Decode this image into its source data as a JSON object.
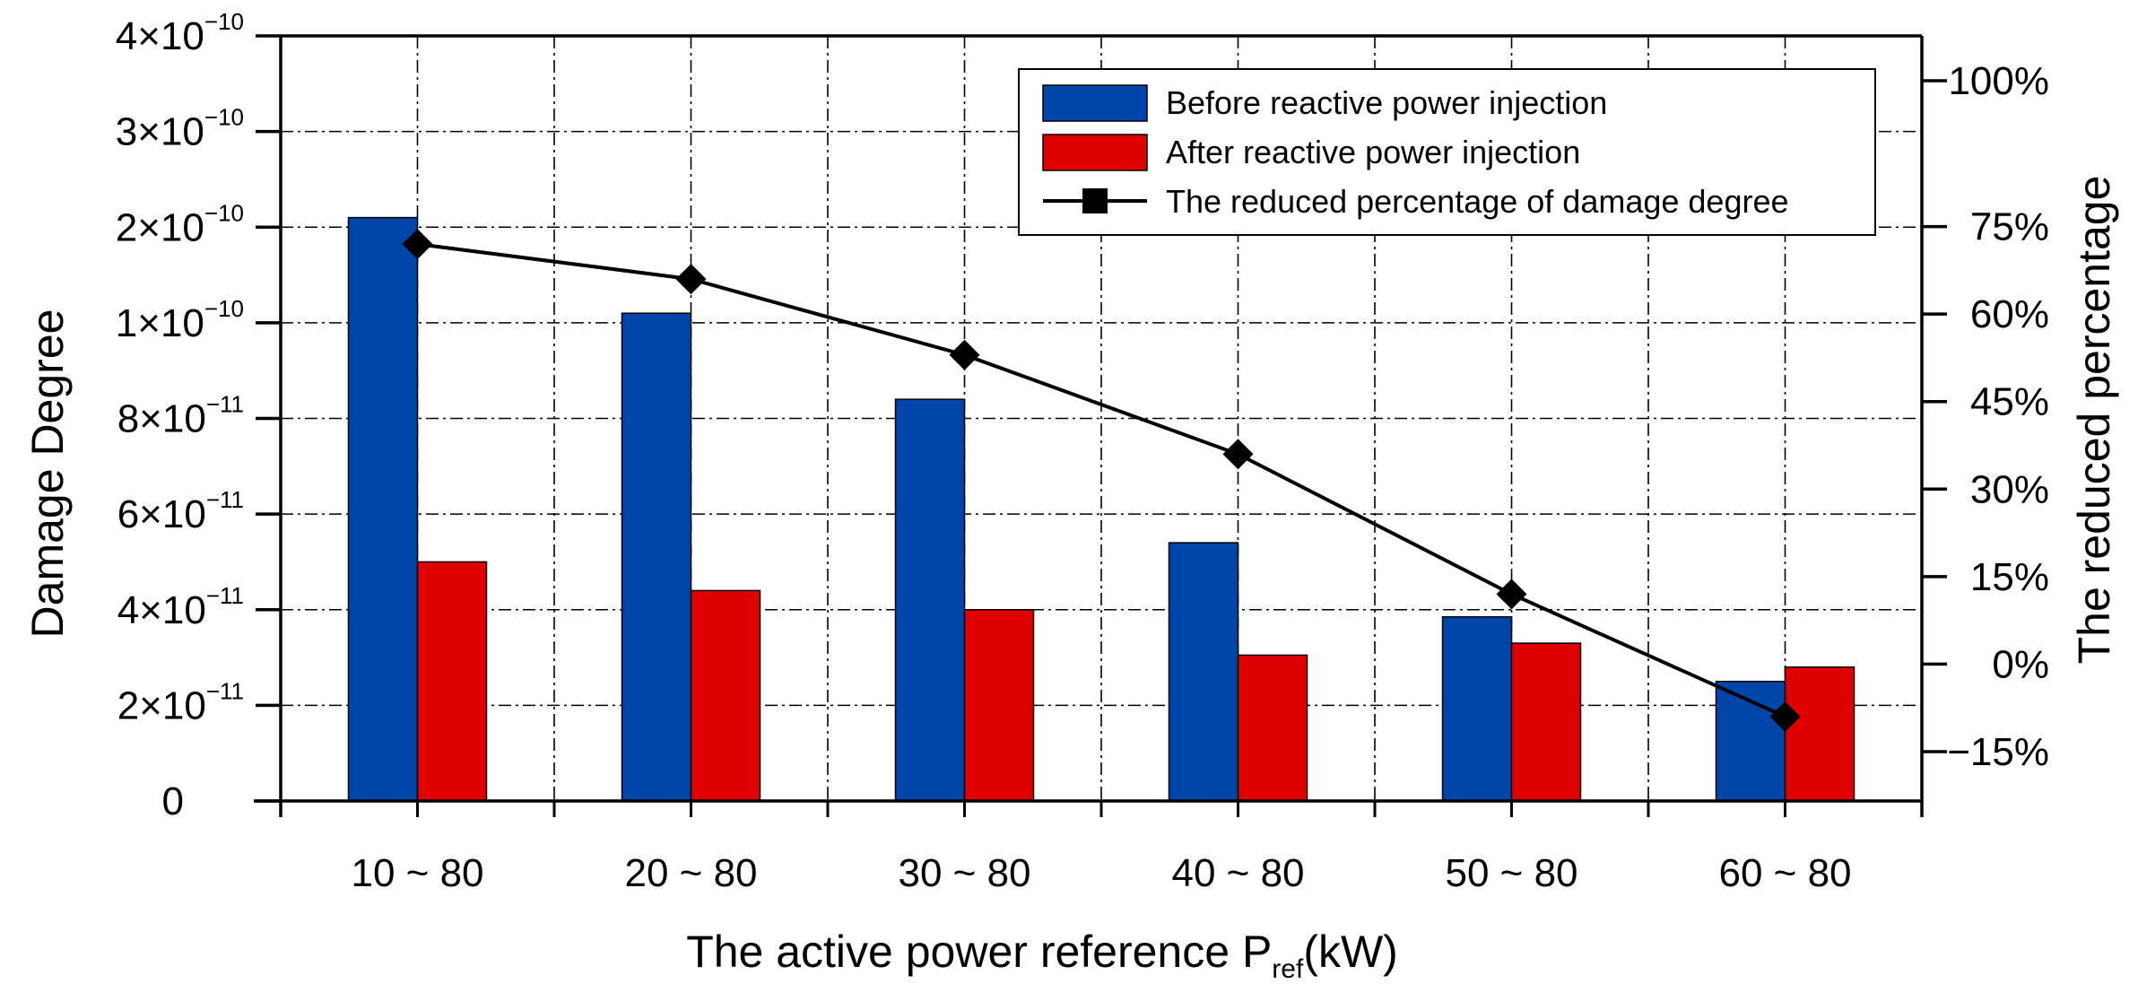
{
  "chart_data": {
    "type": "bar",
    "xlabel": {
      "main": "The active power reference P",
      "sub": "ref",
      "unit": "(kW)"
    },
    "ylabel": "Damage Degree",
    "y2label": "The reduced percentage",
    "categories": [
      "10 ~ 80",
      "20 ~ 80",
      "30 ~ 80",
      "40 ~ 80",
      "50 ~ 80",
      "60 ~ 80"
    ],
    "series": [
      {
        "name": "Before reactive power injection",
        "type": "bar",
        "axis": "left",
        "color": "#0046AA",
        "values": [
          "2.1e-10",
          "1.1e-10",
          "8.4e-11",
          "5.4e-11",
          "3.85e-11",
          "2.5e-11"
        ]
      },
      {
        "name": "After reactive power injection",
        "type": "bar",
        "axis": "left",
        "color": "#E00000",
        "values": [
          "5e-11",
          "4.4e-11",
          "4e-11",
          "3.05e-11",
          "3.3e-11",
          "2.8e-11"
        ]
      },
      {
        "name": "The reduced percentage of damage degree",
        "type": "line",
        "axis": "right",
        "color": "#000000",
        "marker": "diamond",
        "values": [
          72,
          66,
          53,
          36,
          12,
          -9
        ]
      }
    ],
    "y_axis": {
      "note": "non-uniform (broken) scale: tick labels are evenly spaced",
      "ticks": [
        {
          "value": "0",
          "mant": "0",
          "exp": ""
        },
        {
          "value": "2e-11",
          "mant": "2×10",
          "exp": "−11"
        },
        {
          "value": "4e-11",
          "mant": "4×10",
          "exp": "−11"
        },
        {
          "value": "6e-11",
          "mant": "6×10",
          "exp": "−11"
        },
        {
          "value": "8e-11",
          "mant": "8×10",
          "exp": "−11"
        },
        {
          "value": "1e-10",
          "mant": "1×10",
          "exp": "−10"
        },
        {
          "value": "2e-10",
          "mant": "2×10",
          "exp": "−10"
        },
        {
          "value": "3e-10",
          "mant": "3×10",
          "exp": "−10"
        },
        {
          "value": "4e-10",
          "mant": "4×10",
          "exp": "−10"
        }
      ]
    },
    "y2_axis": {
      "ylim": [
        -15,
        100
      ],
      "ticks": [
        "−15%",
        "0%",
        "15%",
        "30%",
        "45%",
        "60%",
        "75%",
        "100%"
      ],
      "tick_values": [
        -15,
        0,
        15,
        30,
        45,
        60,
        75,
        100
      ]
    },
    "grid": true,
    "grid_style": "dash-dot",
    "legend_position": "top-right"
  }
}
